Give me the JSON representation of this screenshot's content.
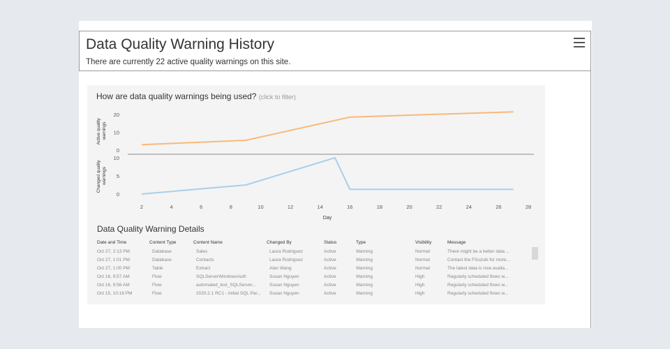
{
  "header": {
    "title": "Data Quality Warning History",
    "subtitle": "There are currently 22 active quality warnings on this site."
  },
  "menu_icon": "hamburger-menu-icon",
  "chart_section": {
    "question": "How are data quality warnings being used?",
    "hint": "(click to filter)"
  },
  "chart_data": [
    {
      "type": "line",
      "ylabel": "Active quality warnings",
      "xlabel": "",
      "x": [
        2,
        9,
        16,
        27
      ],
      "series": [
        {
          "values": [
            3,
            5.5,
            18.5,
            21.5
          ],
          "color": "#f7b97a"
        }
      ],
      "ylim": [
        0,
        22
      ],
      "yticks": [
        0,
        10,
        20
      ],
      "xlim": [
        2,
        28
      ],
      "grid": false
    },
    {
      "type": "line",
      "ylabel": "Changed quality warnings",
      "xlabel": "Day",
      "x": [
        2,
        9,
        15,
        16,
        27
      ],
      "series": [
        {
          "values": [
            0,
            2.5,
            10,
            1.3,
            1.3
          ],
          "color": "#a8cfea"
        }
      ],
      "ylim": [
        0,
        10
      ],
      "yticks": [
        0,
        5,
        10
      ],
      "xlim": [
        2,
        28
      ],
      "xticks": [
        2,
        4,
        6,
        8,
        10,
        12,
        14,
        16,
        18,
        20,
        22,
        24,
        26,
        28
      ],
      "grid": false
    }
  ],
  "details": {
    "title": "Data Quality Warning Details",
    "columns": [
      "Date and Time",
      "Content Type",
      "Content Name",
      "Changed By",
      "Status",
      "Type",
      "Visibility",
      "Message"
    ],
    "rows": [
      [
        "Oct 27, 2:13 PM",
        "Database",
        "Sales",
        "Laura Rodriguez",
        "Active",
        "Warning",
        "Normal",
        "There might be a better data ..."
      ],
      [
        "Oct 27, 1:01 PM",
        "Database",
        "Contacts",
        "Laura Rodriguez",
        "Active",
        "Warning",
        "Normal",
        "Contact the FSuzuki for more..."
      ],
      [
        "Oct 27, 1:00 PM",
        "Table",
        "Extract",
        "Alan Wang",
        "Active",
        "Warning",
        "Normal",
        "The latest data is now availa..."
      ],
      [
        "Oct 16, 9:57 AM",
        "Flow",
        "SQLServerWindowsAuth",
        "Susan Nguyen",
        "Active",
        "Warning",
        "High",
        "Regularly scheduled flows w..."
      ],
      [
        "Oct 16, 9:56 AM",
        "Flow",
        "automated_test_SQLServer...",
        "Susan Nguyen",
        "Active",
        "Warning",
        "High",
        "Regularly scheduled flows w..."
      ],
      [
        "Oct 15, 10:18 PM",
        "Flow",
        "2020.2.1 RC1 - Initial SQL Par...",
        "Susan Nguyen",
        "Active",
        "Warning",
        "High",
        "Regularly scheduled flows w..."
      ]
    ]
  }
}
